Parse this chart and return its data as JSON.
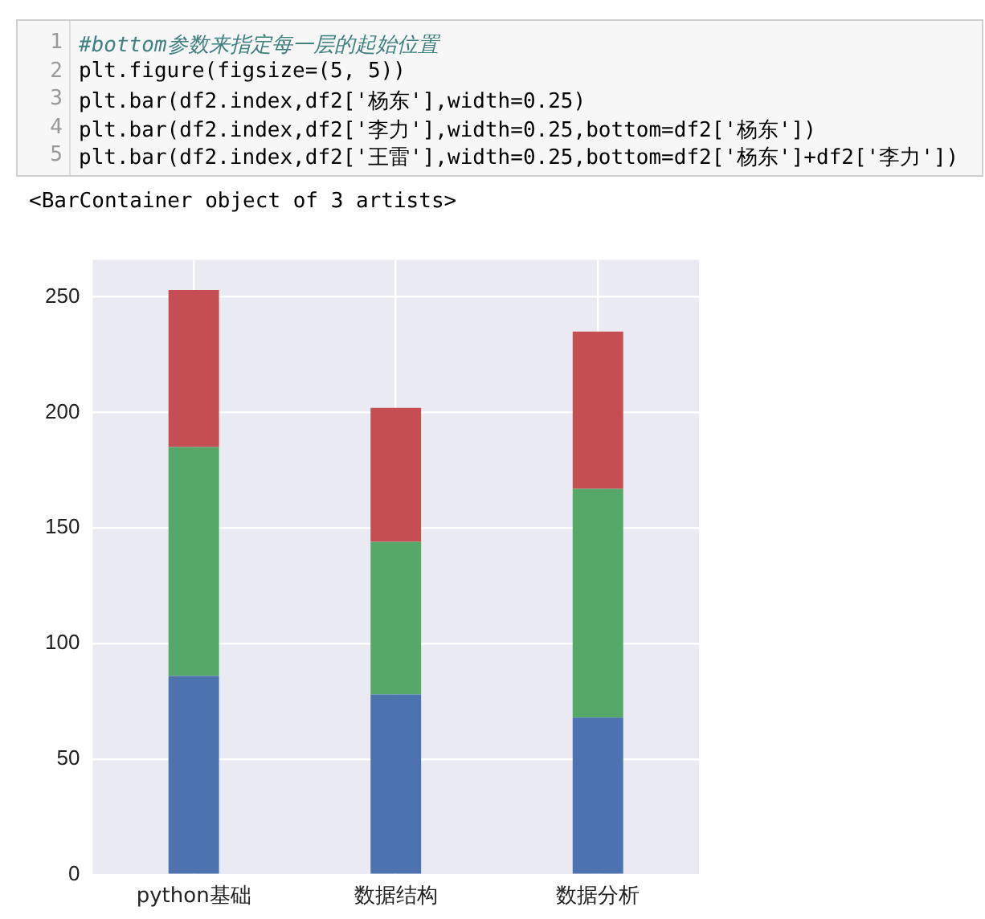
{
  "chart_data": {
    "type": "bar",
    "stacked": true,
    "categories": [
      "python基础",
      "数据结构",
      "数据分析"
    ],
    "series": [
      {
        "color": "#4c72b0",
        "values": [
          86,
          78,
          68
        ]
      },
      {
        "color": "#55a868",
        "values": [
          99,
          66,
          99
        ]
      },
      {
        "color": "#c44e52",
        "values": [
          68,
          58,
          68
        ]
      }
    ],
    "ylim": [
      0,
      266
    ],
    "yticks": [
      0,
      50,
      100,
      150,
      200,
      250
    ],
    "grid": true,
    "legend": false,
    "annotations": [
      "1",
      "#bottom参数来指定每一层的起始位置",
      "2",
      "plt.figure(figsize=(5, 5))",
      "3",
      "plt.bar(df2.index,df2['杨东'],width=0.25)",
      "4",
      "plt.bar(df2.index,df2['李力'],width=0.25,bottom=df2['杨东'])",
      "5",
      "plt.bar(df2.index,df2['王雷'],width=0.25,bottom=df2['杨东']+df2['李力'])",
      "<BarContainer object of 3 artists>"
    ]
  }
}
